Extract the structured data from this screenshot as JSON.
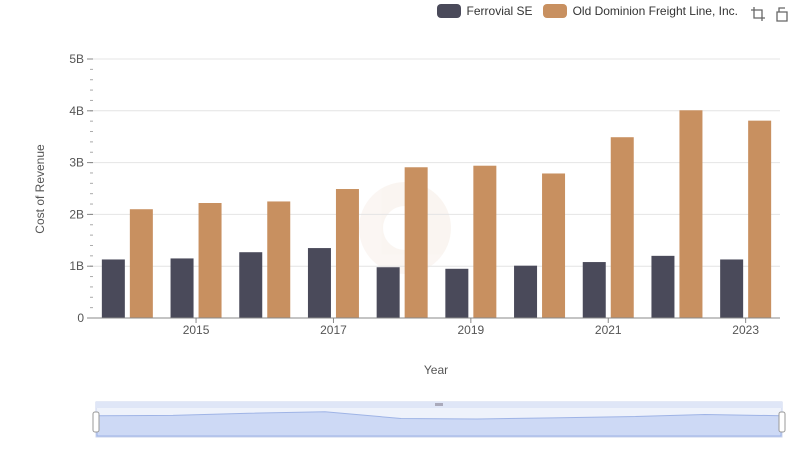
{
  "chart_data": {
    "type": "bar",
    "xlabel": "Year",
    "ylabel": "Cost of Revenue",
    "x": [
      2014,
      2015,
      2016,
      2017,
      2018,
      2019,
      2020,
      2021,
      2022,
      2023
    ],
    "x_tick_labels": [
      "2015",
      "2017",
      "2019",
      "2021",
      "2023"
    ],
    "y_tick_labels": [
      "0",
      "1B",
      "2B",
      "3B",
      "4B",
      "5B"
    ],
    "ylim": [
      0,
      5000000000
    ],
    "grid": true,
    "legend_position": "top-right",
    "series": [
      {
        "name": "Ferrovial SE",
        "color": "#4a4a5a",
        "values": [
          1130000000,
          1150000000,
          1270000000,
          1350000000,
          980000000,
          950000000,
          1010000000,
          1080000000,
          1200000000,
          1130000000
        ]
      },
      {
        "name": "Old Dominion Freight Line, Inc.",
        "color": "#c89060",
        "values": [
          2100000000,
          2220000000,
          2250000000,
          2490000000,
          2910000000,
          2940000000,
          2790000000,
          3490000000,
          4010000000,
          3810000000
        ]
      }
    ]
  },
  "toolbar": {
    "icons": [
      "crop-icon",
      "reset-icon"
    ]
  }
}
